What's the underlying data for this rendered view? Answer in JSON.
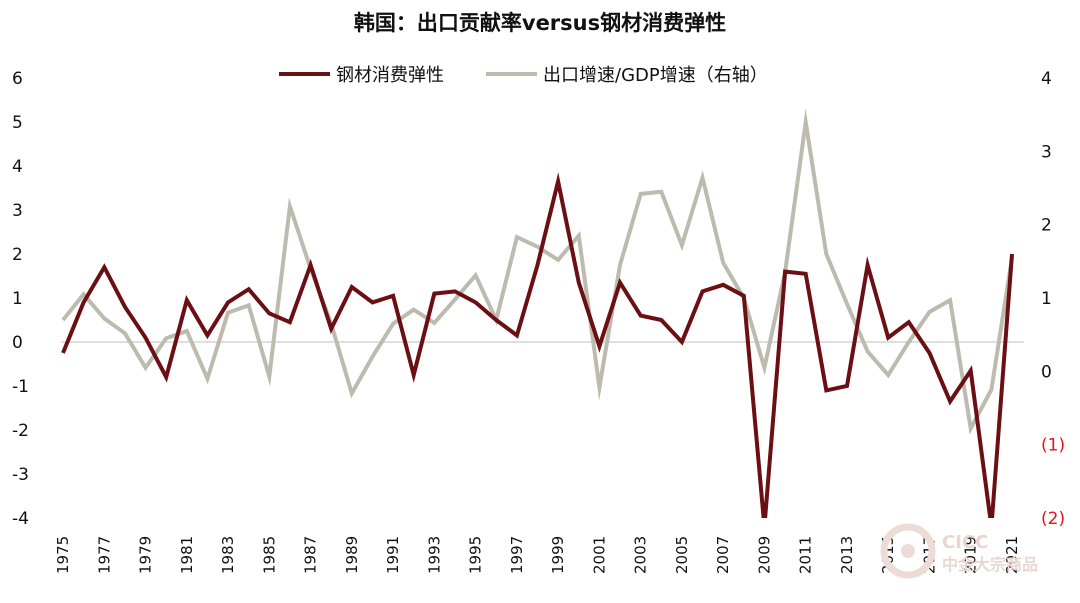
{
  "chart_data": {
    "type": "line",
    "title": "韩国：出口贡献率versus钢材消费弹性",
    "x": [
      1975,
      1976,
      1977,
      1978,
      1979,
      1980,
      1981,
      1982,
      1983,
      1984,
      1985,
      1986,
      1987,
      1988,
      1989,
      1990,
      1991,
      1992,
      1993,
      1994,
      1995,
      1996,
      1997,
      1998,
      1999,
      2000,
      2001,
      2002,
      2003,
      2004,
      2005,
      2006,
      2007,
      2008,
      2009,
      2010,
      2011,
      2012,
      2013,
      2014,
      2015,
      2016,
      2017,
      2018,
      2019,
      2020,
      2021
    ],
    "x_tick_labels": [
      "1975",
      "1977",
      "1979",
      "1981",
      "1983",
      "1985",
      "1987",
      "1989",
      "1991",
      "1993",
      "1995",
      "1997",
      "1999",
      "2001",
      "2003",
      "2005",
      "2007",
      "2009",
      "2011",
      "2013",
      "2015",
      "2017",
      "2019",
      "2021"
    ],
    "series": [
      {
        "name": "钢材消费弹性",
        "axis": "left",
        "color": "#6b0f14",
        "values": [
          -0.25,
          0.9,
          1.7,
          0.8,
          0.1,
          -0.8,
          0.95,
          0.15,
          0.9,
          1.2,
          0.65,
          0.45,
          1.75,
          0.3,
          1.25,
          0.9,
          1.05,
          -0.75,
          1.1,
          1.15,
          0.9,
          0.5,
          0.15,
          1.75,
          3.65,
          1.35,
          -0.1,
          1.35,
          0.6,
          0.5,
          0.0,
          1.15,
          1.3,
          1.05,
          -4.2,
          1.6,
          1.55,
          -1.1,
          -1.0,
          1.75,
          0.1,
          0.45,
          -0.25,
          -1.35,
          -0.65,
          -4.2,
          2.0
        ]
      },
      {
        "name": "出口增速/GDP增速（右轴）",
        "axis": "right",
        "color": "#bdbbad",
        "values": [
          0.7,
          1.05,
          0.72,
          0.52,
          0.05,
          0.45,
          0.55,
          -0.1,
          0.8,
          0.9,
          -0.07,
          2.25,
          1.4,
          0.65,
          -0.3,
          0.2,
          0.65,
          0.84,
          0.66,
          0.98,
          1.31,
          0.7,
          1.83,
          1.7,
          1.52,
          1.85,
          -0.22,
          1.45,
          2.42,
          2.45,
          1.72,
          2.64,
          1.48,
          1.0,
          0.05,
          1.35,
          3.4,
          1.6,
          0.92,
          0.27,
          -0.05,
          0.4,
          0.81,
          0.97,
          -0.78,
          -0.25,
          1.55
        ]
      }
    ],
    "left_axis": {
      "ylim": [
        -4,
        6
      ],
      "ticks": [
        "-4",
        "-3",
        "-2",
        "-1",
        "0",
        "1",
        "2",
        "3",
        "4",
        "5",
        "6"
      ]
    },
    "right_axis": {
      "ylim": [
        -2,
        4
      ],
      "ticks": [
        "(2)",
        "(1)",
        "0",
        "1",
        "2",
        "3",
        "4"
      ]
    },
    "legend": {
      "placement": "top-center",
      "entries": [
        "钢材消费弹性",
        "出口增速/GDP增速（右轴）"
      ]
    },
    "grid": false,
    "zero_line": true
  },
  "watermark": {
    "line1": "CICC",
    "line2": "中金大宗商品"
  }
}
